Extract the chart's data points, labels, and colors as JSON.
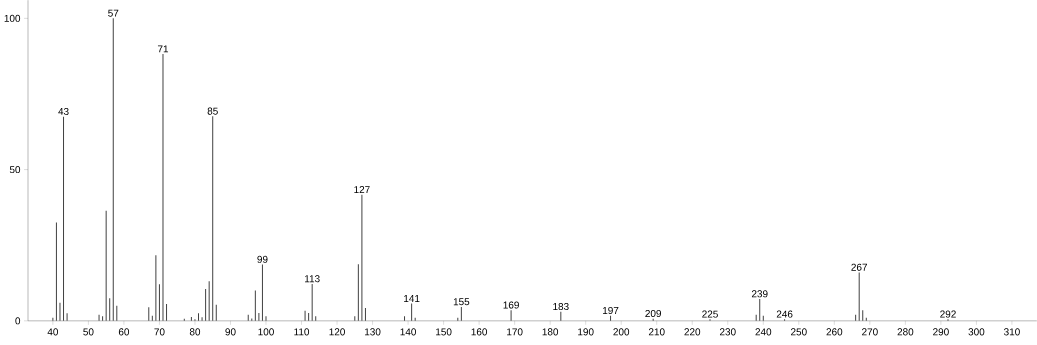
{
  "chart_data": {
    "type": "bar",
    "color": "#404040",
    "x": [
      40,
      41,
      42,
      43,
      44,
      53,
      54,
      55,
      56,
      57,
      58,
      67,
      68,
      69,
      70,
      71,
      72,
      77,
      79,
      80,
      81,
      82,
      83,
      84,
      85,
      86,
      95,
      96,
      97,
      98,
      99,
      100,
      111,
      112,
      113,
      114,
      125,
      126,
      127,
      128,
      139,
      141,
      142,
      154,
      155,
      169,
      183,
      197,
      209,
      225,
      238,
      239,
      240,
      246,
      266,
      267,
      268,
      269,
      292
    ],
    "values": [
      1,
      32.5,
      6,
      67.5,
      2.5,
      2,
      1.5,
      36.4,
      7.5,
      100,
      5,
      4.5,
      1.7,
      21.7,
      12.1,
      88.2,
      5.6,
      0.7,
      1.3,
      0.5,
      2.5,
      1.2,
      10.5,
      13.1,
      67.6,
      5.3,
      2,
      0.8,
      10,
      2.6,
      18.6,
      1.5,
      3.3,
      2.6,
      12.2,
      1.5,
      1.5,
      18.7,
      41.7,
      4.2,
      1.5,
      5.7,
      1,
      1,
      4.6,
      3.5,
      3,
      1.7,
      0.7,
      0.5,
      2,
      7.2,
      1.7,
      0.5,
      2,
      16,
      3.5,
      1,
      0.5
    ],
    "xlim": [
      33,
      317
    ],
    "ylim": [
      0,
      106
    ],
    "xticks": [
      40,
      50,
      60,
      70,
      80,
      90,
      100,
      110,
      120,
      130,
      140,
      150,
      160,
      170,
      180,
      190,
      200,
      210,
      220,
      230,
      240,
      250,
      260,
      270,
      280,
      290,
      300,
      310
    ],
    "yticks": [
      0,
      50,
      100
    ],
    "grid": false,
    "annotations": [
      {
        "text": "43",
        "x": 43,
        "y": 67.5
      },
      {
        "text": "57",
        "x": 57,
        "y": 100
      },
      {
        "text": "71",
        "x": 71,
        "y": 88.2
      },
      {
        "text": "85",
        "x": 85,
        "y": 67.6
      },
      {
        "text": "99",
        "x": 99,
        "y": 18.6
      },
      {
        "text": "113",
        "x": 113,
        "y": 12.2
      },
      {
        "text": "127",
        "x": 127,
        "y": 41.7
      },
      {
        "text": "141",
        "x": 141,
        "y": 5.7
      },
      {
        "text": "155",
        "x": 155,
        "y": 4.6
      },
      {
        "text": "169",
        "x": 169,
        "y": 3.5
      },
      {
        "text": "183",
        "x": 183,
        "y": 3
      },
      {
        "text": "197",
        "x": 197,
        "y": 1.7
      },
      {
        "text": "209",
        "x": 209,
        "y": 0.7
      },
      {
        "text": "225",
        "x": 225,
        "y": 0.5
      },
      {
        "text": "239",
        "x": 239,
        "y": 7.2
      },
      {
        "text": "246",
        "x": 246,
        "y": 0.5
      },
      {
        "text": "267",
        "x": 267,
        "y": 16
      },
      {
        "text": "292",
        "x": 292,
        "y": 0.5
      }
    ]
  }
}
